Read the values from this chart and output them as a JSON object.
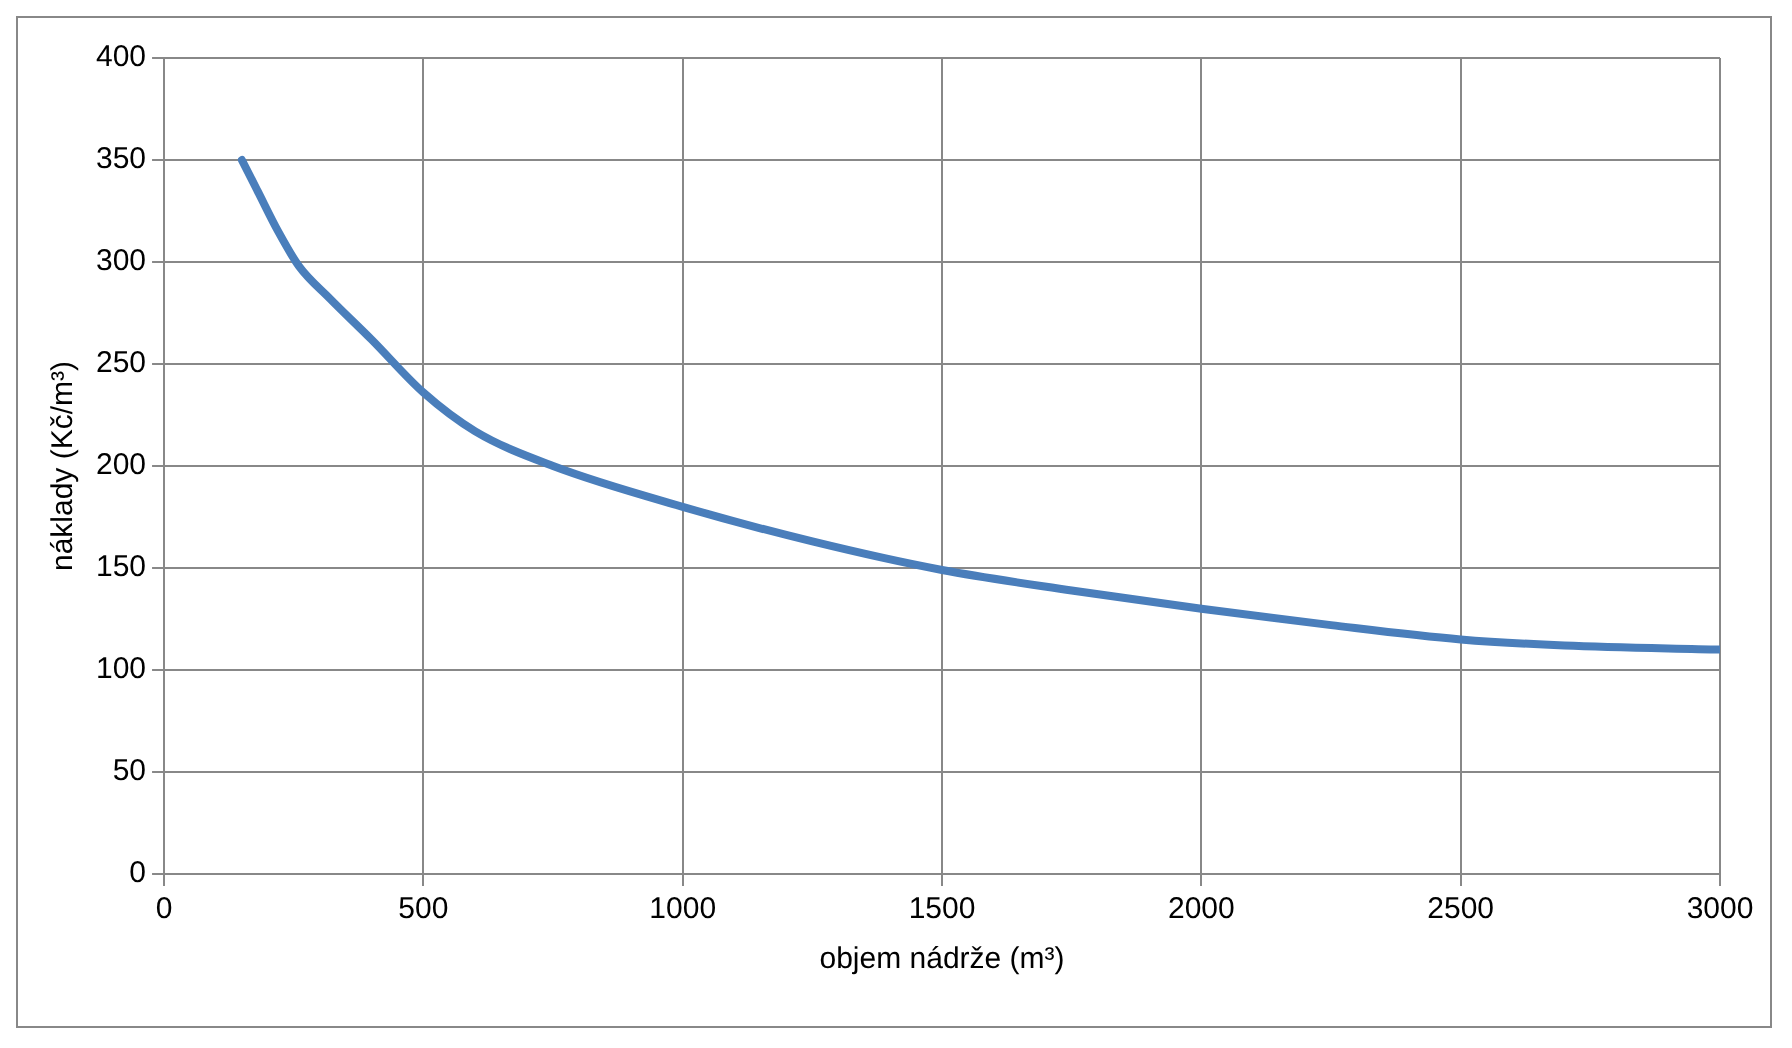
{
  "chart_data": {
    "type": "line",
    "xlabel": "objem nádrže (m³)",
    "ylabel": "náklady (Kč/m³)",
    "series": [
      {
        "color": "#4a7ebb",
        "x": [
          150,
          180,
          220,
          260,
          320,
          400,
          500,
          600,
          750,
          1000,
          1250,
          1500,
          1750,
          2000,
          2250,
          2500,
          2700,
          3000
        ],
        "values": [
          350,
          335,
          315,
          298,
          282,
          262,
          236,
          217,
          200,
          180,
          163,
          149,
          139,
          130,
          122,
          115,
          112,
          110
        ]
      }
    ],
    "xlim": [
      0,
      3000
    ],
    "xticks": [
      0,
      500,
      1000,
      1500,
      2000,
      2500,
      3000
    ],
    "ylim": [
      0,
      400
    ],
    "yticks": [
      0,
      50,
      100,
      150,
      200,
      250,
      300,
      350,
      400
    ],
    "grid": true,
    "legend": false,
    "marker": "none",
    "line_style": "solid"
  }
}
